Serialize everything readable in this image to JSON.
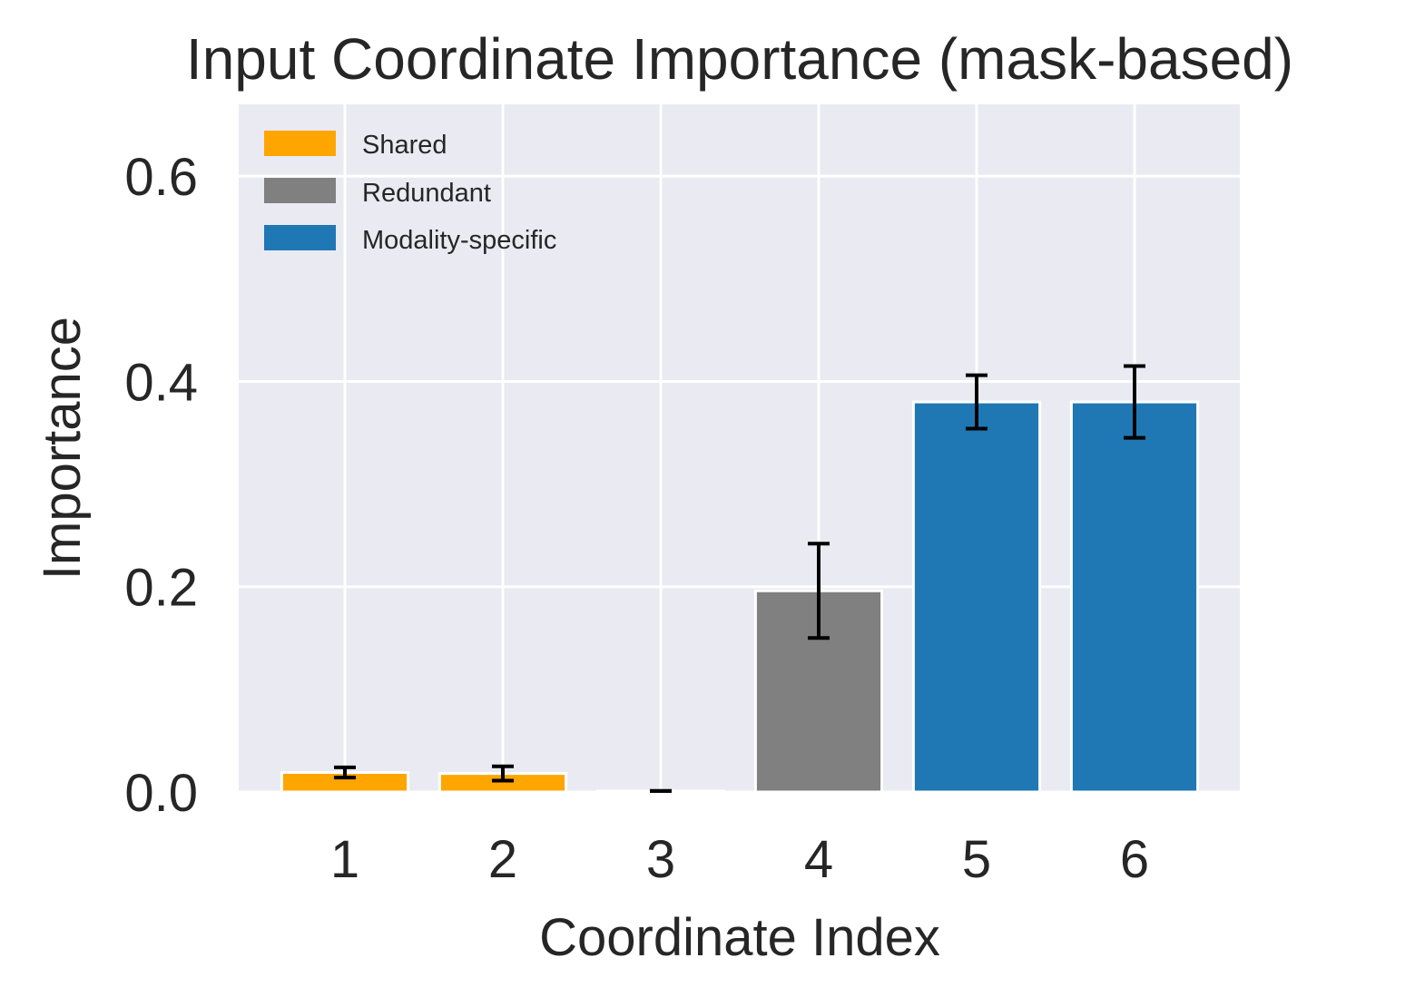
{
  "chart_data": {
    "type": "bar",
    "title": "Input Coordinate Importance (mask-based)",
    "xlabel": "Coordinate Index",
    "ylabel": "Importance",
    "categories": [
      "1",
      "2",
      "3",
      "4",
      "5",
      "6"
    ],
    "values": [
      0.019,
      0.018,
      0.001,
      0.196,
      0.38,
      0.38
    ],
    "errors": [
      0.005,
      0.007,
      0.0,
      0.046,
      0.026,
      0.035
    ],
    "bar_groups": [
      "Shared",
      "Shared",
      "Shared",
      "Redundant",
      "Modality-specific",
      "Modality-specific"
    ],
    "legend": [
      {
        "label": "Shared",
        "color": "#FFA500"
      },
      {
        "label": "Redundant",
        "color": "#808080"
      },
      {
        "label": "Modality-specific",
        "color": "#1F77B4"
      }
    ],
    "ylim": [
      0,
      0.67
    ],
    "yticks": [
      "0.0",
      "0.2",
      "0.4",
      "0.6"
    ],
    "ytick_values": [
      0,
      0.2,
      0.4,
      0.6
    ],
    "grid": true,
    "legend_position": "top-left",
    "background_color": "#EAEAF2"
  }
}
